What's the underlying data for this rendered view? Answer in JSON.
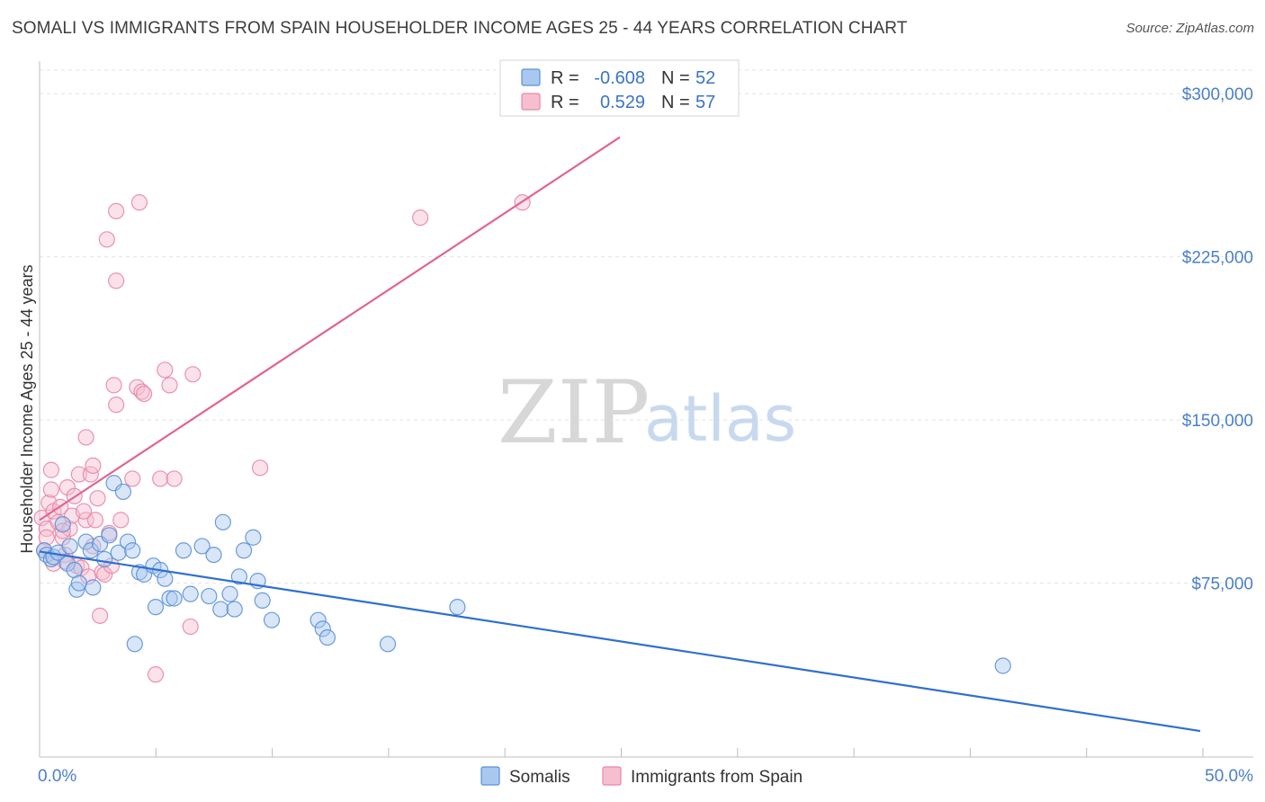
{
  "header": {
    "title": "SOMALI VS IMMIGRANTS FROM SPAIN HOUSEHOLDER INCOME AGES 25 - 44 YEARS CORRELATION CHART",
    "source": "Source: ZipAtlas.com"
  },
  "watermark": {
    "zip": "ZIP",
    "atlas": "atlas"
  },
  "legend_top": {
    "rows": [
      {
        "r_label": "R =",
        "r_value": "-0.608",
        "n_label": "N =",
        "n_value": "52"
      },
      {
        "r_label": "R =",
        "r_value": "0.529",
        "n_label": "N =",
        "n_value": "57"
      }
    ]
  },
  "legend_bottom": {
    "items": [
      "Somalis",
      "Immigrants from Spain"
    ]
  },
  "chart_data": {
    "type": "scatter",
    "title": "SOMALI VS IMMIGRANTS FROM SPAIN HOUSEHOLDER INCOME AGES 25 - 44 YEARS CORRELATION CHART",
    "xlabel": "",
    "ylabel": "Householder Income Ages 25 - 44 years",
    "xlim": [
      0,
      50
    ],
    "ylim": [
      0,
      310000
    ],
    "x_tick_labels": [
      "0.0%",
      "50.0%"
    ],
    "y_ticks": [
      75000,
      150000,
      225000,
      300000
    ],
    "y_tick_labels": [
      "$75,000",
      "$150,000",
      "$225,000",
      "$300,000"
    ],
    "grid": true,
    "legend_position": "top-center",
    "colors": {
      "somalis_fill": "#a9c8f0",
      "somalis_stroke": "#5b90d8",
      "somalis_line": "#2f6fd0",
      "spain_fill": "#f6bfd0",
      "spain_stroke": "#e887a6",
      "spain_line": "#e2648d"
    },
    "series": [
      {
        "name": "Somalis",
        "trend": {
          "x": [
            0.0,
            50.0
          ],
          "y": [
            89500,
            7000
          ]
        },
        "points": [
          [
            0.2,
            90000
          ],
          [
            0.3,
            88000
          ],
          [
            0.5,
            86000
          ],
          [
            0.6,
            87000
          ],
          [
            0.8,
            89000
          ],
          [
            1.0,
            102000
          ],
          [
            1.2,
            84000
          ],
          [
            1.3,
            92000
          ],
          [
            1.5,
            81000
          ],
          [
            1.6,
            72000
          ],
          [
            1.7,
            75000
          ],
          [
            2.0,
            94000
          ],
          [
            2.2,
            90000
          ],
          [
            2.3,
            73000
          ],
          [
            2.6,
            93000
          ],
          [
            2.8,
            86000
          ],
          [
            3.0,
            97000
          ],
          [
            3.2,
            121000
          ],
          [
            3.4,
            89000
          ],
          [
            3.6,
            117000
          ],
          [
            3.8,
            94000
          ],
          [
            4.0,
            90000
          ],
          [
            4.3,
            80000
          ],
          [
            4.5,
            79000
          ],
          [
            4.9,
            83000
          ],
          [
            5.0,
            64000
          ],
          [
            5.2,
            81000
          ],
          [
            5.4,
            77000
          ],
          [
            5.6,
            68000
          ],
          [
            5.8,
            68000
          ],
          [
            6.2,
            90000
          ],
          [
            6.5,
            70000
          ],
          [
            7.0,
            92000
          ],
          [
            7.3,
            69000
          ],
          [
            7.5,
            88000
          ],
          [
            7.8,
            63000
          ],
          [
            7.9,
            103000
          ],
          [
            8.2,
            70000
          ],
          [
            8.4,
            63000
          ],
          [
            8.6,
            78000
          ],
          [
            8.8,
            90000
          ],
          [
            9.2,
            96000
          ],
          [
            9.4,
            76000
          ],
          [
            9.6,
            67000
          ],
          [
            10.0,
            58000
          ],
          [
            4.1,
            47000
          ],
          [
            12.0,
            58000
          ],
          [
            12.2,
            54000
          ],
          [
            12.4,
            50000
          ],
          [
            15.0,
            47000
          ],
          [
            18.0,
            64000
          ],
          [
            41.5,
            37000
          ]
        ]
      },
      {
        "name": "Immigrants from Spain",
        "trend": {
          "x": [
            0.0,
            25.0
          ],
          "y": [
            104000,
            280000
          ]
        },
        "points": [
          [
            0.1,
            105000
          ],
          [
            0.2,
            90000
          ],
          [
            0.3,
            100000
          ],
          [
            0.4,
            112000
          ],
          [
            0.5,
            118000
          ],
          [
            0.6,
            108000
          ],
          [
            0.6,
            84000
          ],
          [
            0.8,
            103000
          ],
          [
            0.9,
            110000
          ],
          [
            1.0,
            96000
          ],
          [
            1.1,
            88000
          ],
          [
            1.2,
            119000
          ],
          [
            1.3,
            100000
          ],
          [
            1.4,
            106000
          ],
          [
            1.5,
            115000
          ],
          [
            1.6,
            83000
          ],
          [
            1.7,
            125000
          ],
          [
            1.8,
            82000
          ],
          [
            2.0,
            104000
          ],
          [
            2.1,
            78000
          ],
          [
            2.2,
            125000
          ],
          [
            2.3,
            129000
          ],
          [
            2.4,
            104000
          ],
          [
            2.5,
            114000
          ],
          [
            2.6,
            60000
          ],
          [
            2.7,
            80000
          ],
          [
            2.8,
            79000
          ],
          [
            3.0,
            98000
          ],
          [
            3.1,
            83000
          ],
          [
            3.2,
            166000
          ],
          [
            3.3,
            157000
          ],
          [
            2.0,
            142000
          ],
          [
            0.5,
            127000
          ],
          [
            3.5,
            104000
          ],
          [
            4.0,
            123000
          ],
          [
            4.2,
            165000
          ],
          [
            4.4,
            163000
          ],
          [
            4.5,
            162000
          ],
          [
            3.3,
            246000
          ],
          [
            2.9,
            233000
          ],
          [
            3.3,
            214000
          ],
          [
            4.3,
            250000
          ],
          [
            5.0,
            33000
          ],
          [
            5.2,
            123000
          ],
          [
            5.4,
            173000
          ],
          [
            5.6,
            166000
          ],
          [
            5.8,
            123000
          ],
          [
            6.5,
            55000
          ],
          [
            6.6,
            171000
          ],
          [
            9.5,
            128000
          ],
          [
            16.4,
            243000
          ],
          [
            20.8,
            250000
          ],
          [
            1.0,
            99000
          ],
          [
            0.3,
            96000
          ],
          [
            1.9,
            108000
          ],
          [
            2.3,
            92000
          ],
          [
            1.1,
            85000
          ]
        ]
      }
    ]
  }
}
